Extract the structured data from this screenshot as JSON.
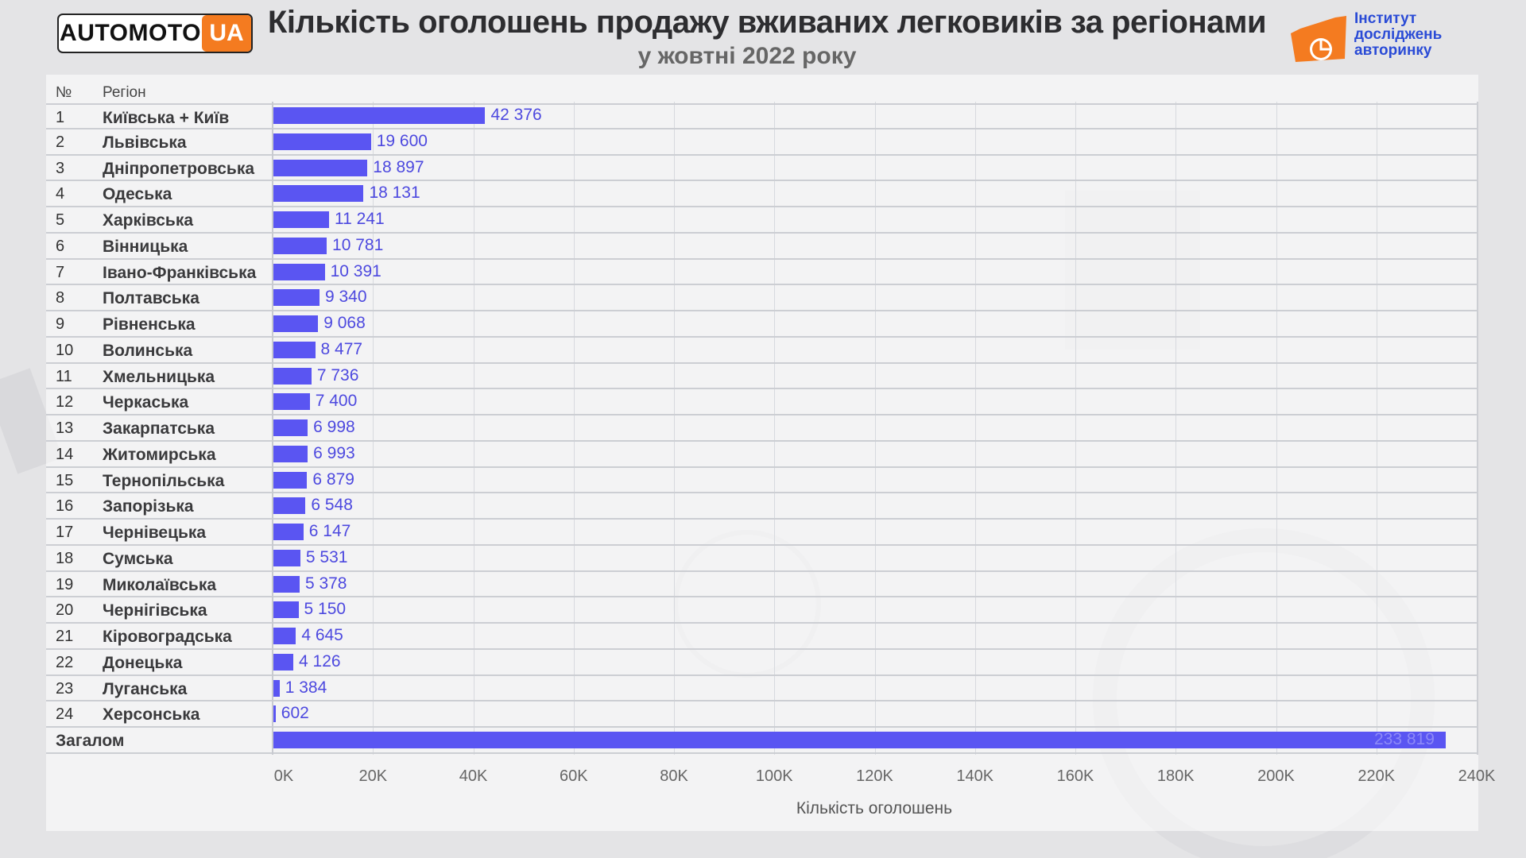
{
  "header": {
    "logo_text": "AUTOMOTO",
    "logo_badge": "UA",
    "title": "Кількість оголошень продажу вживаних легковиків за регіонами",
    "subtitle": "у жовтні 2022 року",
    "institute": [
      "Інститут",
      "досліджень",
      "авторинку"
    ]
  },
  "table_headers": {
    "num": "№",
    "region": "Регіон"
  },
  "chart_data": {
    "type": "bar",
    "orientation": "horizontal",
    "title": "Кількість оголошень продажу вживаних легковиків за регіонами",
    "subtitle": "у жовтні 2022 року",
    "xlabel": "Кількість оголошень",
    "xlim": [
      0,
      240000
    ],
    "xticks": [
      "0K",
      "20K",
      "40K",
      "60K",
      "80K",
      "100K",
      "120K",
      "140K",
      "160K",
      "180K",
      "200K",
      "220K",
      "240K"
    ],
    "grid": true,
    "rows": [
      {
        "num": "1",
        "region": "Київська + Київ",
        "value": 42376,
        "label": "42 376"
      },
      {
        "num": "2",
        "region": "Львівська",
        "value": 19600,
        "label": "19 600"
      },
      {
        "num": "3",
        "region": "Дніпропетровська",
        "value": 18897,
        "label": "18 897"
      },
      {
        "num": "4",
        "region": "Одеська",
        "value": 18131,
        "label": "18 131"
      },
      {
        "num": "5",
        "region": "Харківська",
        "value": 11241,
        "label": "11 241"
      },
      {
        "num": "6",
        "region": "Вінницька",
        "value": 10781,
        "label": "10 781"
      },
      {
        "num": "7",
        "region": "Івано-Франківська",
        "value": 10391,
        "label": "10 391"
      },
      {
        "num": "8",
        "region": "Полтавська",
        "value": 9340,
        "label": "9 340"
      },
      {
        "num": "9",
        "region": "Рівненська",
        "value": 9068,
        "label": "9 068"
      },
      {
        "num": "10",
        "region": "Волинська",
        "value": 8477,
        "label": "8 477"
      },
      {
        "num": "11",
        "region": "Хмельницька",
        "value": 7736,
        "label": "7 736"
      },
      {
        "num": "12",
        "region": "Черкаська",
        "value": 7400,
        "label": "7 400"
      },
      {
        "num": "13",
        "region": "Закарпатська",
        "value": 6998,
        "label": "6 998"
      },
      {
        "num": "14",
        "region": "Житомирська",
        "value": 6993,
        "label": "6 993"
      },
      {
        "num": "15",
        "region": "Тернопільська",
        "value": 6879,
        "label": "6 879"
      },
      {
        "num": "16",
        "region": "Запорізька",
        "value": 6548,
        "label": "6 548"
      },
      {
        "num": "17",
        "region": "Чернівецька",
        "value": 6147,
        "label": "6 147"
      },
      {
        "num": "18",
        "region": "Сумська",
        "value": 5531,
        "label": "5 531"
      },
      {
        "num": "19",
        "region": "Миколаївська",
        "value": 5378,
        "label": "5 378"
      },
      {
        "num": "20",
        "region": "Чернігівська",
        "value": 5150,
        "label": "5 150"
      },
      {
        "num": "21",
        "region": "Кіровоградська",
        "value": 4645,
        "label": "4 645"
      },
      {
        "num": "22",
        "region": "Донецька",
        "value": 4126,
        "label": "4 126"
      },
      {
        "num": "23",
        "region": "Луганська",
        "value": 1384,
        "label": "1 384"
      },
      {
        "num": "24",
        "region": "Херсонська",
        "value": 602,
        "label": "602"
      },
      {
        "num": "",
        "region": "Загалом",
        "value": 233819,
        "label": "233 819"
      }
    ],
    "bar_color": "#5a55f2",
    "value_color": "#4d49df"
  },
  "colors": {
    "accent_orange": "#f47b20",
    "institute_blue": "#2a4bd6"
  }
}
